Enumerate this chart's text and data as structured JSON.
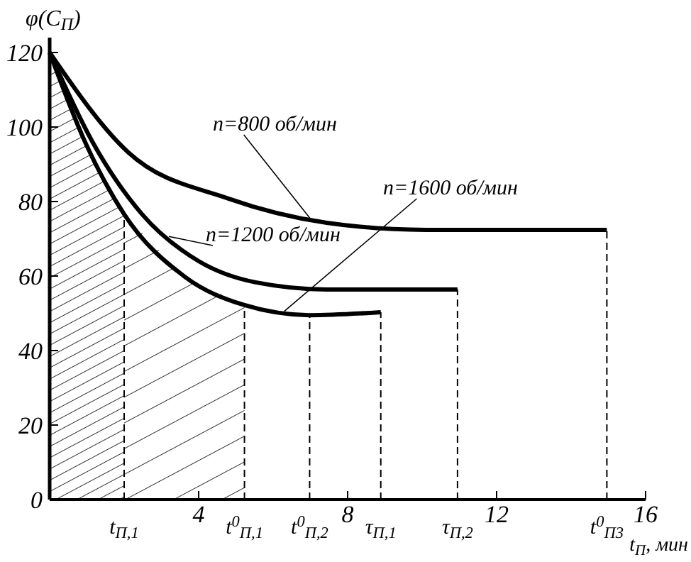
{
  "chart_data": {
    "type": "line",
    "xlabel": "t$_{П}$, мин",
    "ylabel": "φ(C$_{П}$)",
    "xlim": [
      0,
      16
    ],
    "ylim": [
      0,
      124
    ],
    "xticks": [
      4,
      8,
      12,
      16
    ],
    "yticks": [
      0,
      20,
      40,
      60,
      80,
      100,
      120
    ],
    "grid": false,
    "line_style": "solid",
    "marker": "none",
    "series": [
      {
        "name": "n=800 об/мин",
        "color": "#000000",
        "x": [
          0,
          2.1,
          4.8,
          7.44,
          10.1,
          14.96
        ],
        "values": [
          120,
          93.3,
          80.8,
          74.3,
          72.4,
          72.4
        ]
      },
      {
        "name": "n=1200 об/мин",
        "color": "#000000",
        "x": [
          0,
          1.15,
          2.48,
          4.0,
          5.53,
          7.44,
          10.95
        ],
        "values": [
          120,
          96,
          76.6,
          64,
          58.3,
          56.4,
          56.4
        ]
      },
      {
        "name": "n=1600  об/мин",
        "color": "#000000",
        "x": [
          0,
          0.95,
          2.0,
          3.63,
          5.23,
          6.98,
          8.89
        ],
        "values": [
          120,
          96,
          76.6,
          59.8,
          52.2,
          49.5,
          50.3
        ]
      }
    ],
    "ref_lines": [
      {
        "axis": "x",
        "value": 2.0,
        "label": "t$_{П,1}$",
        "line_style": "dashed"
      },
      {
        "axis": "x",
        "value": 5.23,
        "label": "t$^{0}$$_{П,1}$",
        "line_style": "dashed"
      },
      {
        "axis": "x",
        "value": 6.98,
        "label": "t$^{0}$$_{П,2}$",
        "line_style": "dashed"
      },
      {
        "axis": "x",
        "value": 8.89,
        "label": "τ$_{П,1}$",
        "line_style": "dashed"
      },
      {
        "axis": "x",
        "value": 10.95,
        "label": "τ$_{П,2}$",
        "line_style": "dashed"
      },
      {
        "axis": "x",
        "value": 14.96,
        "label": "t$^{0}$$_{П3}$",
        "line_style": "dashed"
      }
    ]
  }
}
